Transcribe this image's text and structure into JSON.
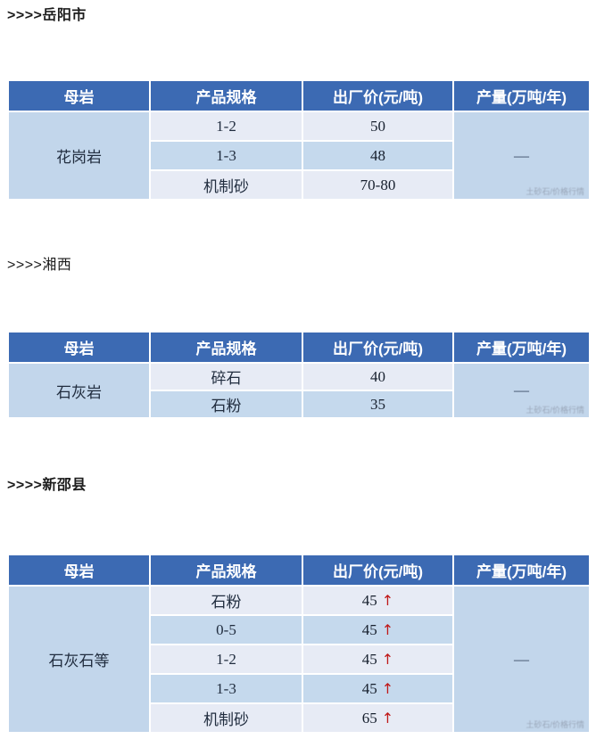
{
  "colors": {
    "header_bg": "#3c6ab3",
    "row_light": "#e7ebf5",
    "row_blue": "#c5d9ed",
    "merged_cell_bg": "#c2d6eb",
    "header_text": "#ffffff",
    "body_text": "#212d3f",
    "arrow_red": "#c01818",
    "page_bg": "#ffffff"
  },
  "sections": [
    {
      "id": "yueyang",
      "heading": ">>>>岳阳市",
      "table": {
        "headers": [
          "母岩",
          "产品规格",
          "出厂价(元/吨)",
          "产量(万吨/年)"
        ],
        "rock": "花岗岩",
        "output": "—",
        "watermark": "土砂石/价格行情",
        "rows": [
          {
            "spec": "1-2",
            "price": "50",
            "arrow": ""
          },
          {
            "spec": "1-3",
            "price": "48",
            "arrow": ""
          },
          {
            "spec": "机制砂",
            "price": "70-80",
            "arrow": ""
          }
        ]
      }
    },
    {
      "id": "xiangxi",
      "heading": ">>>>湘西",
      "table": {
        "headers": [
          "母岩",
          "产品规格",
          "出厂价(元/吨)",
          "产量(万吨/年)"
        ],
        "rock": "石灰岩",
        "output": "—",
        "watermark": "土砂石/价格行情",
        "rows": [
          {
            "spec": "碎石",
            "price": "40",
            "arrow": ""
          },
          {
            "spec": "石粉",
            "price": "35",
            "arrow": ""
          }
        ]
      }
    },
    {
      "id": "xinshao",
      "heading": ">>>>新邵县",
      "table": {
        "headers": [
          "母岩",
          "产品规格",
          "出厂价(元/吨)",
          "产量(万吨/年)"
        ],
        "rock": "石灰石等",
        "output": "—",
        "watermark": "土砂石/价格行情",
        "rows": [
          {
            "spec": "石粉",
            "price": "45",
            "arrow": "↑"
          },
          {
            "spec": "0-5",
            "price": "45",
            "arrow": "↑"
          },
          {
            "spec": "1-2",
            "price": "45",
            "arrow": "↑"
          },
          {
            "spec": "1-3",
            "price": "45",
            "arrow": "↑"
          },
          {
            "spec": "机制砂",
            "price": "65",
            "arrow": "↑"
          }
        ]
      }
    }
  ]
}
